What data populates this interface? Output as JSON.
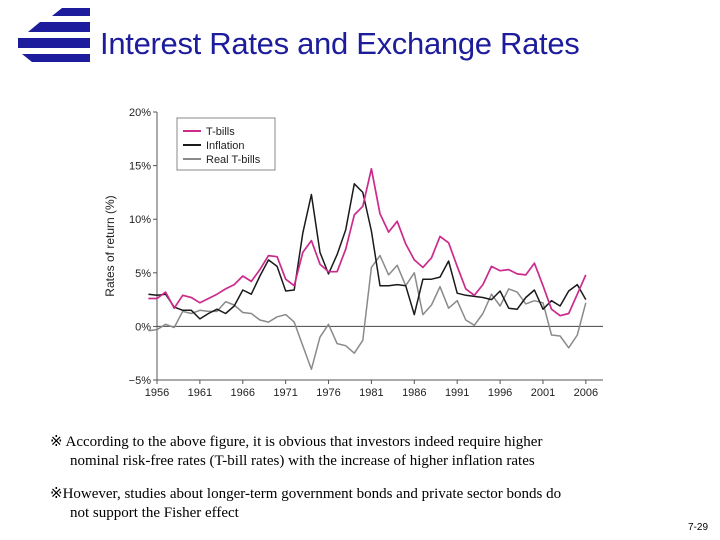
{
  "slide": {
    "title": "Interest Rates and Exchange Rates",
    "note1_line1": "※ According to the above figure, it is obvious that investors indeed require higher",
    "note1_line2": "nominal risk-free rates (T-bill rates) with the increase of higher inflation rates",
    "note2_line1": "※However, studies about longer-term government bonds and private sector bonds do",
    "note2_line2": "not support the Fisher effect",
    "page_number": "7-29",
    "title_color": "#1c1c9c",
    "logo_color": "#1c1c9c"
  },
  "chart_data": {
    "type": "line",
    "title": "",
    "xlabel": "",
    "ylabel": "Rates of return (%)",
    "xlim": [
      1956,
      2008
    ],
    "ylim": [
      -5,
      20
    ],
    "x_ticks": [
      1956,
      1961,
      1966,
      1971,
      1976,
      1981,
      1986,
      1991,
      1996,
      2001,
      2006
    ],
    "x_tick_labels": [
      "1956",
      "1961",
      "1966",
      "1971",
      "1976",
      "1981",
      "1986",
      "1991",
      "1996",
      "2001",
      "2006"
    ],
    "y_ticks": [
      -5,
      0,
      5,
      10,
      15,
      20
    ],
    "y_tick_labels": [
      "−5%",
      "0%",
      "5%",
      "10%",
      "15%",
      "20%"
    ],
    "legend_position": "top-left",
    "zero_line": true,
    "series": [
      {
        "name": "T-bills",
        "color": "#cc2a8c",
        "x": [
          1955,
          1956,
          1957,
          1958,
          1959,
          1960,
          1961,
          1962,
          1963,
          1964,
          1965,
          1966,
          1967,
          1968,
          1969,
          1970,
          1971,
          1972,
          1973,
          1974,
          1975,
          1976,
          1977,
          1978,
          1979,
          1980,
          1981,
          1982,
          1983,
          1984,
          1985,
          1986,
          1987,
          1988,
          1989,
          1990,
          1991,
          1992,
          1993,
          1994,
          1995,
          1996,
          1997,
          1998,
          1999,
          2000,
          2001,
          2002,
          2003,
          2004,
          2005,
          2006
        ],
        "values": [
          2.6,
          2.6,
          3.2,
          1.7,
          2.9,
          2.7,
          2.2,
          2.6,
          3.0,
          3.5,
          3.9,
          4.7,
          4.2,
          5.3,
          6.6,
          6.5,
          4.4,
          3.8,
          6.9,
          8.0,
          5.8,
          5.1,
          5.1,
          7.2,
          10.4,
          11.2,
          14.7,
          10.5,
          8.8,
          9.8,
          7.7,
          6.2,
          5.5,
          6.4,
          8.4,
          7.8,
          5.6,
          3.5,
          2.9,
          3.9,
          5.6,
          5.2,
          5.3,
          4.9,
          4.8,
          5.9,
          3.8,
          1.6,
          1.0,
          1.2,
          3.0,
          4.8
        ]
      },
      {
        "name": "Inflation",
        "color": "#1a1a1a",
        "x": [
          1955,
          1956,
          1957,
          1958,
          1959,
          1960,
          1961,
          1962,
          1963,
          1964,
          1965,
          1966,
          1967,
          1968,
          1969,
          1970,
          1971,
          1972,
          1973,
          1974,
          1975,
          1976,
          1977,
          1978,
          1979,
          1980,
          1981,
          1982,
          1983,
          1984,
          1985,
          1986,
          1987,
          1988,
          1989,
          1990,
          1991,
          1992,
          1993,
          1994,
          1995,
          1996,
          1997,
          1998,
          1999,
          2000,
          2001,
          2002,
          2003,
          2004,
          2005,
          2006
        ],
        "values": [
          3.0,
          2.9,
          3.0,
          1.8,
          1.5,
          1.5,
          0.7,
          1.2,
          1.6,
          1.2,
          1.9,
          3.4,
          3.0,
          4.7,
          6.2,
          5.6,
          3.3,
          3.4,
          8.7,
          12.3,
          6.9,
          4.9,
          6.7,
          9.0,
          13.3,
          12.5,
          8.9,
          3.8,
          3.8,
          3.9,
          3.8,
          1.1,
          4.4,
          4.4,
          4.6,
          6.1,
          3.1,
          2.9,
          2.8,
          2.7,
          2.5,
          3.3,
          1.7,
          1.6,
          2.7,
          3.4,
          1.6,
          2.4,
          1.9,
          3.3,
          3.9,
          2.5
        ]
      },
      {
        "name": "Real T-bills",
        "color": "#8a8a8a",
        "x": [
          1955,
          1956,
          1957,
          1958,
          1959,
          1960,
          1961,
          1962,
          1963,
          1964,
          1965,
          1966,
          1967,
          1968,
          1969,
          1970,
          1971,
          1972,
          1973,
          1974,
          1975,
          1976,
          1977,
          1978,
          1979,
          1980,
          1981,
          1982,
          1983,
          1984,
          1985,
          1986,
          1987,
          1988,
          1989,
          1990,
          1991,
          1992,
          1993,
          1994,
          1995,
          1996,
          1997,
          1998,
          1999,
          2000,
          2001,
          2002,
          2003,
          2004,
          2005,
          2006
        ],
        "values": [
          -0.4,
          -0.3,
          0.2,
          -0.1,
          1.4,
          1.2,
          1.5,
          1.4,
          1.4,
          2.3,
          2.0,
          1.3,
          1.2,
          0.6,
          0.4,
          0.9,
          1.1,
          0.4,
          -1.8,
          -4.0,
          -1.0,
          0.2,
          -1.6,
          -1.8,
          -2.5,
          -1.3,
          5.5,
          6.6,
          4.8,
          5.7,
          3.8,
          5.0,
          1.1,
          2.0,
          3.7,
          1.7,
          2.4,
          0.6,
          0.1,
          1.2,
          3.0,
          1.9,
          3.5,
          3.2,
          2.1,
          2.4,
          2.2,
          -0.8,
          -0.9,
          -2.0,
          -0.8,
          2.2
        ]
      }
    ]
  }
}
